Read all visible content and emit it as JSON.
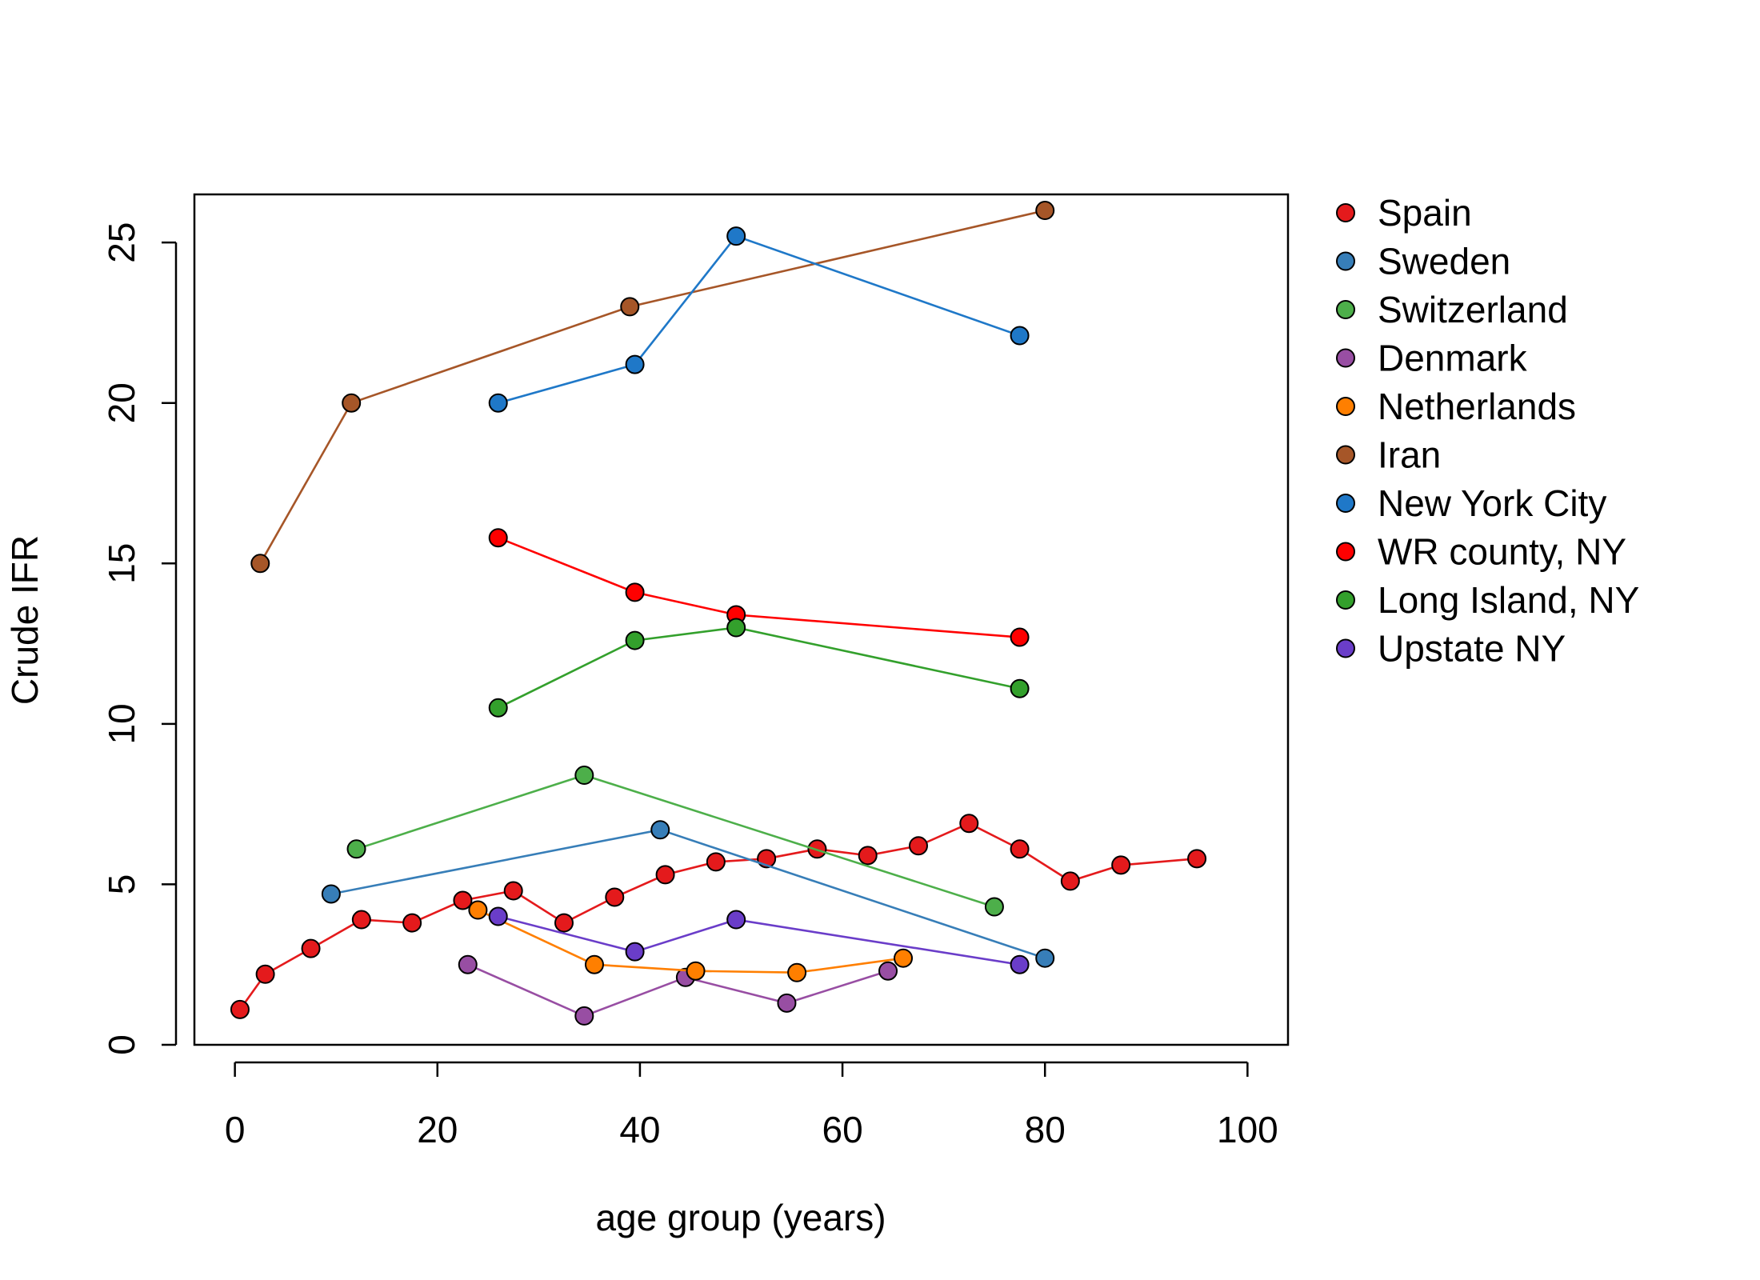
{
  "chart_data": {
    "type": "line",
    "xlabel": "age group (years)",
    "ylabel": "Crude IFR",
    "xlim": [
      -4,
      104
    ],
    "ylim": [
      0,
      26.5
    ],
    "xticks": [
      0,
      20,
      40,
      60,
      80,
      100
    ],
    "yticks": [
      0,
      5,
      10,
      15,
      20,
      25
    ],
    "grid": false,
    "legend_position": "right, outside plot",
    "series": [
      {
        "name": "Spain",
        "color": "#e41a1c",
        "x": [
          0.5,
          3,
          7.5,
          12.5,
          17.5,
          22.5,
          27.5,
          32.5,
          37.5,
          42.5,
          47.5,
          52.5,
          57.5,
          62.5,
          67.5,
          72.5,
          77.5,
          82.5,
          87.5,
          95
        ],
        "y": [
          1.1,
          2.2,
          3.0,
          3.9,
          3.8,
          4.5,
          4.8,
          3.8,
          4.6,
          5.3,
          5.7,
          5.8,
          6.1,
          5.9,
          6.2,
          6.9,
          6.1,
          5.1,
          5.6,
          5.8
        ]
      },
      {
        "name": "Sweden",
        "color": "#377eb8",
        "x": [
          9.5,
          42,
          80
        ],
        "y": [
          4.7,
          6.7,
          2.7
        ]
      },
      {
        "name": "Switzerland",
        "color": "#4daf4a",
        "x": [
          12,
          34.5,
          75
        ],
        "y": [
          6.1,
          8.4,
          4.3
        ]
      },
      {
        "name": "Denmark",
        "color": "#984ea3",
        "x": [
          23,
          34.5,
          44.5,
          54.5,
          64.5
        ],
        "y": [
          2.5,
          0.9,
          2.1,
          1.3,
          2.3
        ]
      },
      {
        "name": "Netherlands",
        "color": "#ff7f00",
        "x": [
          24,
          35.5,
          45.5,
          55.5,
          66
        ],
        "y": [
          4.2,
          2.5,
          2.3,
          2.25,
          2.7
        ]
      },
      {
        "name": "Iran",
        "color": "#a65628",
        "x": [
          2.5,
          11.5,
          39,
          80
        ],
        "y": [
          15,
          20,
          23,
          26
        ]
      },
      {
        "name": "New York City",
        "color": "#1f78c8",
        "x": [
          26,
          39.5,
          49.5,
          77.5
        ],
        "y": [
          20,
          21.2,
          25.2,
          22.1
        ]
      },
      {
        "name": "WR county, NY",
        "color": "#ff0000",
        "x": [
          26,
          39.5,
          49.5,
          77.5
        ],
        "y": [
          15.8,
          14.1,
          13.4,
          12.7
        ]
      },
      {
        "name": "Long Island, NY",
        "color": "#33a02c",
        "x": [
          26,
          39.5,
          49.5,
          77.5
        ],
        "y": [
          10.5,
          12.6,
          13.0,
          11.1
        ]
      },
      {
        "name": "Upstate NY",
        "color": "#6a3dc9",
        "x": [
          26,
          39.5,
          49.5,
          77.5
        ],
        "y": [
          4.0,
          2.9,
          3.9,
          2.5
        ]
      }
    ]
  }
}
